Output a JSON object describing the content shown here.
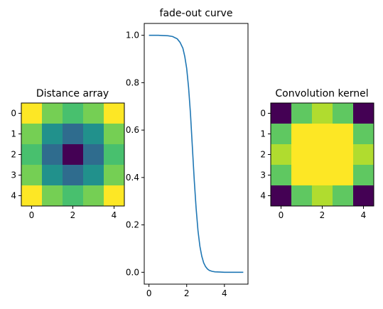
{
  "chart_data": [
    {
      "type": "heatmap",
      "title": "Distance array",
      "colormap": "viridis",
      "x_ticks": [
        0,
        2,
        4
      ],
      "y_ticks": [
        0,
        1,
        2,
        3,
        4
      ],
      "vmin": 0,
      "vmax": 2.83,
      "values": [
        [
          2.83,
          2.24,
          2.0,
          2.24,
          2.83
        ],
        [
          2.24,
          1.41,
          1.0,
          1.41,
          2.24
        ],
        [
          2.0,
          1.0,
          0.0,
          1.0,
          2.0
        ],
        [
          2.24,
          1.41,
          1.0,
          1.41,
          2.24
        ],
        [
          2.83,
          2.24,
          2.0,
          2.24,
          2.83
        ]
      ]
    },
    {
      "type": "line",
      "title": "fade-out curve",
      "xlim": [
        -0.25,
        5.25
      ],
      "ylim": [
        -0.05,
        1.05
      ],
      "x_ticks": [
        0,
        2,
        4
      ],
      "y_ticks": [
        0.0,
        0.2,
        0.4,
        0.6,
        0.8,
        1.0
      ],
      "y_tick_labels": [
        "0.0",
        "0.2",
        "0.4",
        "0.6",
        "0.8",
        "1.0"
      ],
      "line_color": "#1f77b4",
      "x": [
        0,
        0.25,
        0.5,
        0.75,
        1.0,
        1.25,
        1.5,
        1.65,
        1.8,
        1.9,
        2.0,
        2.1,
        2.2,
        2.3,
        2.4,
        2.5,
        2.6,
        2.7,
        2.8,
        2.9,
        3.0,
        3.1,
        3.2,
        3.35,
        3.5,
        3.75,
        4.0,
        4.5,
        5.0
      ],
      "y": [
        1.0,
        1.0,
        1.0,
        0.999,
        0.998,
        0.995,
        0.985,
        0.97,
        0.945,
        0.91,
        0.86,
        0.78,
        0.67,
        0.53,
        0.39,
        0.27,
        0.175,
        0.11,
        0.068,
        0.04,
        0.024,
        0.014,
        0.008,
        0.004,
        0.002,
        0.001,
        0.0,
        0.0,
        0.0
      ]
    },
    {
      "type": "heatmap",
      "title": "Convolution kernel",
      "colormap": "viridis",
      "x_ticks": [
        0,
        2,
        4
      ],
      "y_ticks": [
        0,
        1,
        2,
        3,
        4
      ],
      "vmin": 0,
      "vmax": 1,
      "values": [
        [
          0.0,
          0.75,
          0.88,
          0.75,
          0.0
        ],
        [
          0.75,
          1.0,
          1.0,
          1.0,
          0.75
        ],
        [
          0.88,
          1.0,
          1.0,
          1.0,
          0.88
        ],
        [
          0.75,
          1.0,
          1.0,
          1.0,
          0.75
        ],
        [
          0.0,
          0.75,
          0.88,
          0.75,
          0.0
        ]
      ]
    }
  ]
}
